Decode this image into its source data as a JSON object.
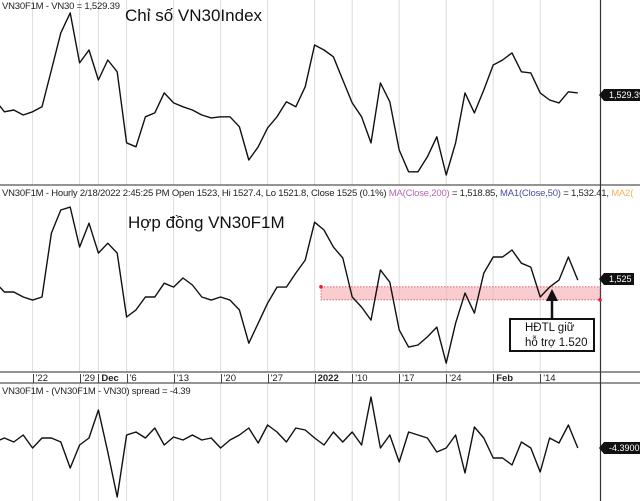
{
  "chart_data": [
    {
      "type": "line",
      "header": "VN30F1M - VN30 = 1,529.39",
      "annotation_title": "Chỉ số VN30Index",
      "last_value_label": "1,529.39",
      "ylim": [
        1494.4,
        1564.7
      ],
      "series": [
        {
          "values": [
            1526.7,
            1522.2,
            1522.9,
            1521.0,
            1522.2,
            1524.1,
            1538.1,
            1552.2,
            1559.8,
            1540.8,
            1545.7,
            1534.3,
            1541.9,
            1537.4,
            1510.4,
            1508.9,
            1520.3,
            1521.8,
            1529.4,
            1525.6,
            1524.1,
            1522.9,
            1521.0,
            1519.9,
            1520.3,
            1520.3,
            1516.5,
            1503.9,
            1508.9,
            1516.1,
            1520.3,
            1526.0,
            1524.1,
            1531.7,
            1547.6,
            1545.7,
            1543.1,
            1534.3,
            1525.6,
            1520.3,
            1510.4,
            1533.2,
            1526.0,
            1507.7,
            1499.4,
            1499.4,
            1505.1,
            1512.7,
            1498.2,
            1510.4,
            1529.4,
            1521.8,
            1530.5,
            1540.0,
            1541.9,
            1544.6,
            1537.4,
            1537.0,
            1529.4,
            1526.7,
            1525.6,
            1529.8,
            1529.39
          ]
        }
      ],
      "grid": true
    },
    {
      "type": "line",
      "header": {
        "main": "VN30F1M - Hourly 2/18/2022 2:45:25 PM Open 1523, Hi 1527.4, Lo 1521.8, Close 1525 (0.1%)",
        "ma": "MA(Close,200)",
        "ma_value": " = 1,518.85, ",
        "ma1": "MA1(Close,50)",
        "ma1_value": " = 1,532.41, ",
        "ma2": "MA2("
      },
      "header_colors": {
        "ma": "#b467b4",
        "ma1": "#4b4f9e",
        "ma2": "#f2b45a"
      },
      "annotation_title": "Hợp đồng VN30F1M",
      "last_value_label": "1,525",
      "ylim": [
        1489.6,
        1557.0
      ],
      "series": [
        {
          "values": [
            1524.2,
            1520.4,
            1520.4,
            1518.5,
            1517.3,
            1518.5,
            1543.1,
            1552.0,
            1553.1,
            1537.7,
            1546.9,
            1535.4,
            1539.2,
            1535.4,
            1510.8,
            1513.5,
            1518.5,
            1518.5,
            1523.8,
            1522.3,
            1525.8,
            1523.1,
            1518.5,
            1517.3,
            1518.5,
            1517.3,
            1513.5,
            1500.7,
            1508.4,
            1516.1,
            1522.3,
            1522.3,
            1527.7,
            1532.7,
            1547.3,
            1544.3,
            1537.7,
            1533.5,
            1518.5,
            1514.6,
            1509.6,
            1528.9,
            1524.2,
            1505.8,
            1499.2,
            1500.0,
            1503.1,
            1506.9,
            1493.0,
            1508.4,
            1520.0,
            1512.3,
            1527.7,
            1533.9,
            1533.9,
            1536.6,
            1531.5,
            1530.0,
            1518.5,
            1522.3,
            1525.0,
            1533.9,
            1525.0
          ]
        }
      ],
      "support_zone": {
        "low": 1517.4,
        "high": 1522.4,
        "from_date": "2022-01-05",
        "color": "#f4a3a8"
      },
      "callout": {
        "line1": "HĐTL giữ",
        "line2": "hỗ trợ 1.520"
      },
      "grid": true
    },
    {
      "type": "line",
      "header": "VN30F1M - (VN30F1M - VN30) spread = -4.39",
      "last_value_label": "-4.39001",
      "ylim": [
        -12.34,
        4.31
      ],
      "series": [
        {
          "values": [
            -3.49,
            -2.89,
            -3.49,
            -2.44,
            -4.39,
            -2.89,
            -2.89,
            -3.49,
            -7.39,
            -3.94,
            -2.89,
            1.31,
            -4.99,
            -11.74,
            -2.44,
            -1.99,
            -2.89,
            -1.39,
            -3.94,
            -2.74,
            -3.19,
            -2.44,
            -3.19,
            -2.89,
            -4.39,
            -3.19,
            -2.44,
            -1.39,
            -3.64,
            -0.94,
            -1.99,
            -3.49,
            -1.39,
            -1.69,
            -2.89,
            -3.94,
            -1.99,
            -3.49,
            -1.99,
            -3.94,
            3.26,
            -4.39,
            -2.44,
            -6.49,
            -1.99,
            -2.44,
            -2.89,
            -4.99,
            -4.39,
            -2.44,
            -8.14,
            -1.24,
            -2.89,
            -5.89,
            -5.89,
            -6.94,
            -3.49,
            -4.39,
            -7.99,
            -2.89,
            -3.64,
            -0.94,
            -4.39
          ]
        }
      ],
      "grid": true
    }
  ],
  "dates": [
    "2021-11-16",
    "2021-11-17",
    "2021-11-18",
    "2021-11-19",
    "2021-11-22",
    "2021-11-23",
    "2021-11-24",
    "2021-11-25",
    "2021-11-26",
    "2021-11-29",
    "2021-11-30",
    "2021-12-01",
    "2021-12-02",
    "2021-12-03",
    "2021-12-06",
    "2021-12-07",
    "2021-12-08",
    "2021-12-09",
    "2021-12-10",
    "2021-12-13",
    "2021-12-14",
    "2021-12-15",
    "2021-12-16",
    "2021-12-17",
    "2021-12-20",
    "2021-12-21",
    "2021-12-22",
    "2021-12-23",
    "2021-12-24",
    "2021-12-27",
    "2021-12-28",
    "2021-12-29",
    "2021-12-30",
    "2021-12-31",
    "2022-01-04",
    "2022-01-05",
    "2022-01-06",
    "2022-01-07",
    "2022-01-10",
    "2022-01-11",
    "2022-01-12",
    "2022-01-13",
    "2022-01-14",
    "2022-01-17",
    "2022-01-18",
    "2022-01-19",
    "2022-01-20",
    "2022-01-21",
    "2022-01-24",
    "2022-01-25",
    "2022-01-26",
    "2022-01-27",
    "2022-01-28",
    "2022-02-07",
    "2022-02-08",
    "2022-02-09",
    "2022-02-10",
    "2022-02-11",
    "2022-02-14",
    "2022-02-15",
    "2022-02-16",
    "2022-02-17",
    "2022-02-18"
  ],
  "x_ticks": [
    {
      "label": "'22",
      "date": "2021-11-22",
      "bold": false
    },
    {
      "label": "'29",
      "date": "2021-11-29",
      "bold": false
    },
    {
      "label": "Dec",
      "date": "2021-12-01",
      "bold": true
    },
    {
      "label": "'6",
      "date": "2021-12-06",
      "bold": false
    },
    {
      "label": "'13",
      "date": "2021-12-13",
      "bold": false
    },
    {
      "label": "'20",
      "date": "2021-12-20",
      "bold": false
    },
    {
      "label": "'27",
      "date": "2021-12-27",
      "bold": false
    },
    {
      "label": "2022",
      "date": "2022-01-04",
      "bold": true
    },
    {
      "label": "'10",
      "date": "2022-01-10",
      "bold": false
    },
    {
      "label": "'17",
      "date": "2022-01-17",
      "bold": false
    },
    {
      "label": "'24",
      "date": "2022-01-24",
      "bold": false
    },
    {
      "label": "Feb",
      "date": "2022-02-07",
      "bold": true
    },
    {
      "label": "'14",
      "date": "2022-02-14",
      "bold": false
    }
  ]
}
